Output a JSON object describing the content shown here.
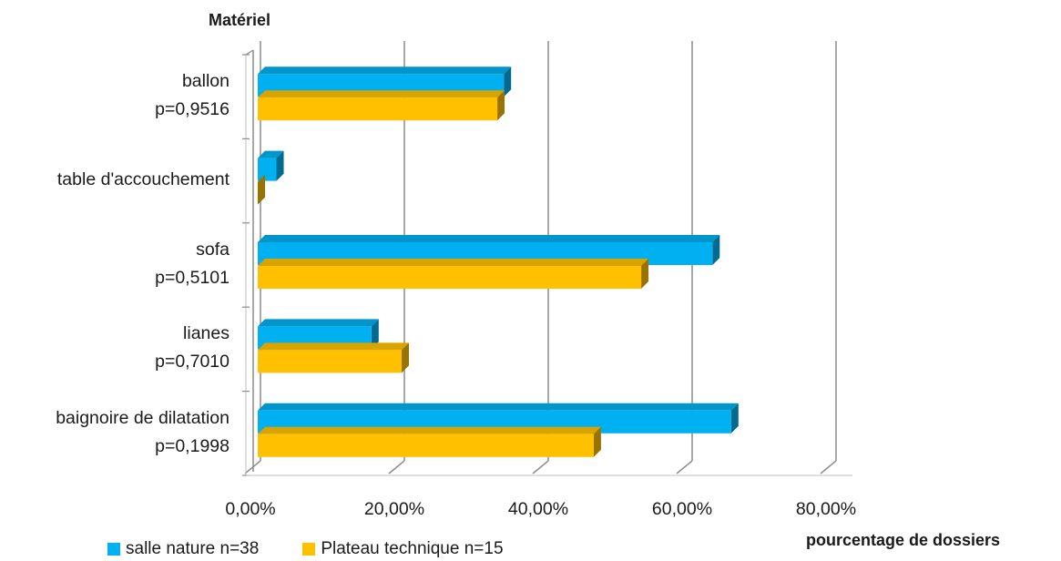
{
  "chart_data": {
    "type": "bar",
    "orientation": "horizontal",
    "style": "3d",
    "y_title": "Matériel",
    "x_title": "pourcentage de dossiers",
    "xlim": [
      0,
      80
    ],
    "x_ticks": [
      "0,00%",
      "20,00%",
      "40,00%",
      "60,00%",
      "80,00%"
    ],
    "grid": true,
    "legend_position": "bottom",
    "categories": [
      {
        "name": "ballon",
        "pvalue": "p=0,9516"
      },
      {
        "name": "table d'accouchement",
        "pvalue": ""
      },
      {
        "name": "sofa",
        "pvalue": "p=0,5101"
      },
      {
        "name": "lianes",
        "pvalue": "p=0,7010"
      },
      {
        "name": "baignoire de dilatation",
        "pvalue": "p=0,1998"
      }
    ],
    "series": [
      {
        "name": "salle nature n=38",
        "color": "#00b0f0",
        "values": [
          34.2,
          2.6,
          63.2,
          15.8,
          65.8
        ]
      },
      {
        "name": "Plateau technique n=15",
        "color": "#ffc000",
        "values": [
          33.3,
          0.0,
          53.3,
          20.0,
          46.7
        ]
      }
    ]
  }
}
